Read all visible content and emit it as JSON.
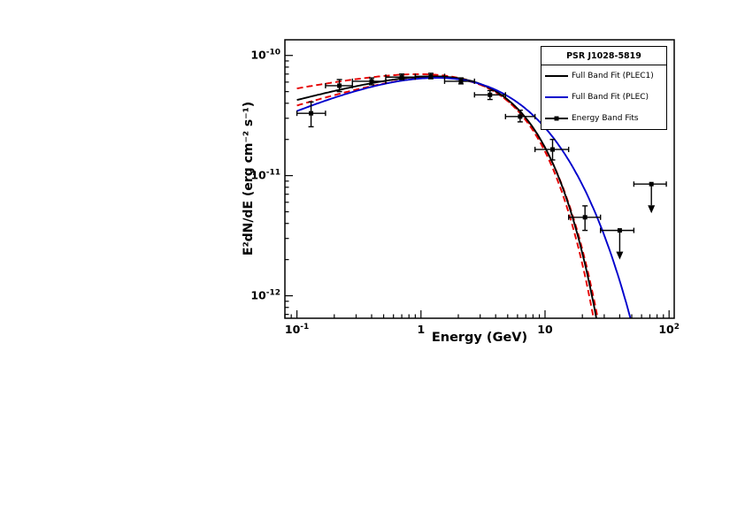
{
  "axes": {
    "xlabel": "Energy (GeV)",
    "ylabel": "E²dN/dE (erg cm⁻² s⁻¹)"
  },
  "legend": {
    "title": "PSR J1028-5819",
    "entries": [
      {
        "label": "Full Band Fit (PLEC1)",
        "color": "#000000",
        "style": "line"
      },
      {
        "label": "Full Band Fit (PLEC)",
        "color": "#0000cc",
        "style": "line"
      },
      {
        "label": "Energy Band Fits",
        "color": "#000000",
        "style": "marker"
      }
    ]
  },
  "chart_data": {
    "type": "line+scatter",
    "title": "PSR J1028-5819",
    "xlabel": "Energy (GeV)",
    "ylabel": "E²dN/dE (erg cm⁻² s⁻¹)",
    "xscale": "log",
    "yscale": "log",
    "xlim": [
      0.08,
      110
    ],
    "ylim": [
      6.5e-13,
      1.35e-10
    ],
    "grid": false,
    "legend_position": "top-right",
    "xticks": [
      {
        "value": 0.1,
        "base": "10",
        "exp": "-1"
      },
      {
        "value": 1,
        "base": "1",
        "exp": ""
      },
      {
        "value": 10,
        "base": "10",
        "exp": ""
      },
      {
        "value": 100,
        "base": "10",
        "exp": "2"
      }
    ],
    "yticks": [
      {
        "value": 1e-12,
        "base": "10",
        "exp": "-12"
      },
      {
        "value": 1e-11,
        "base": "10",
        "exp": "-11"
      },
      {
        "value": 1e-10,
        "base": "10",
        "exp": "-10"
      }
    ],
    "curve_model": "y = A * x^index * exp(-(x/Ecut)^b)  [x in GeV, y in erg cm-2 s-1]",
    "curves": [
      {
        "name": "PLEC1 fit uncertainty (upper)",
        "role": "uncertainty",
        "color": "#e60000",
        "line": "dashed",
        "A": 8.6e-11,
        "index": 0.2,
        "Ecut": 4.8,
        "b": 1
      },
      {
        "name": "PLEC1 fit uncertainty (lower)",
        "role": "uncertainty",
        "color": "#e60000",
        "line": "dashed",
        "A": 8.2e-11,
        "index": 0.32,
        "Ecut": 4.2,
        "b": 1
      },
      {
        "name": "Full Band Fit (PLEC1)",
        "role": "fit",
        "color": "#000000",
        "line": "solid",
        "A": 8.3e-11,
        "index": 0.28,
        "Ecut": 4.5,
        "b": 1
      },
      {
        "name": "Full Band Fit (PLEC)",
        "role": "fit",
        "color": "#0000cc",
        "line": "solid",
        "A": 1.3e-10,
        "index": 0.5,
        "Ecut": 1.8,
        "b": 0.6
      }
    ],
    "points": {
      "name": "Energy Band Fits",
      "marker": "square",
      "color": "#000000",
      "data": [
        {
          "x": 0.13,
          "xlo": 0.1,
          "xhi": 0.17,
          "y": 3.3e-11,
          "ylo": 2.55e-11,
          "yhi": 4.1e-11
        },
        {
          "x": 0.22,
          "xlo": 0.17,
          "xhi": 0.28,
          "y": 5.6e-11,
          "ylo": 5e-11,
          "yhi": 6.3e-11
        },
        {
          "x": 0.4,
          "xlo": 0.28,
          "xhi": 0.52,
          "y": 6.1e-11,
          "ylo": 5.7e-11,
          "yhi": 6.5e-11
        },
        {
          "x": 0.7,
          "xlo": 0.52,
          "xhi": 0.9,
          "y": 6.6e-11,
          "ylo": 6.3e-11,
          "yhi": 7e-11
        },
        {
          "x": 1.2,
          "xlo": 0.9,
          "xhi": 1.55,
          "y": 6.7e-11,
          "ylo": 6.4e-11,
          "yhi": 7.1e-11
        },
        {
          "x": 2.1,
          "xlo": 1.55,
          "xhi": 2.7,
          "y": 6.1e-11,
          "ylo": 5.8e-11,
          "yhi": 6.5e-11
        },
        {
          "x": 3.6,
          "xlo": 2.7,
          "xhi": 4.8,
          "y": 4.7e-11,
          "ylo": 4.3e-11,
          "yhi": 5.1e-11
        },
        {
          "x": 6.3,
          "xlo": 4.8,
          "xhi": 8.3,
          "y": 3.1e-11,
          "ylo": 2.8e-11,
          "yhi": 3.5e-11
        },
        {
          "x": 11.5,
          "xlo": 8.3,
          "xhi": 15.5,
          "y": 1.65e-11,
          "ylo": 1.35e-11,
          "yhi": 2e-11
        },
        {
          "x": 21.0,
          "xlo": 15.5,
          "xhi": 28.0,
          "y": 4.5e-12,
          "ylo": 3.5e-12,
          "yhi": 5.6e-12
        }
      ]
    },
    "upper_limits": [
      {
        "x": 40,
        "xlo": 28,
        "xhi": 52,
        "y": 3.5e-12
      },
      {
        "x": 72,
        "xlo": 52,
        "xhi": 95,
        "y": 8.5e-12
      }
    ]
  }
}
